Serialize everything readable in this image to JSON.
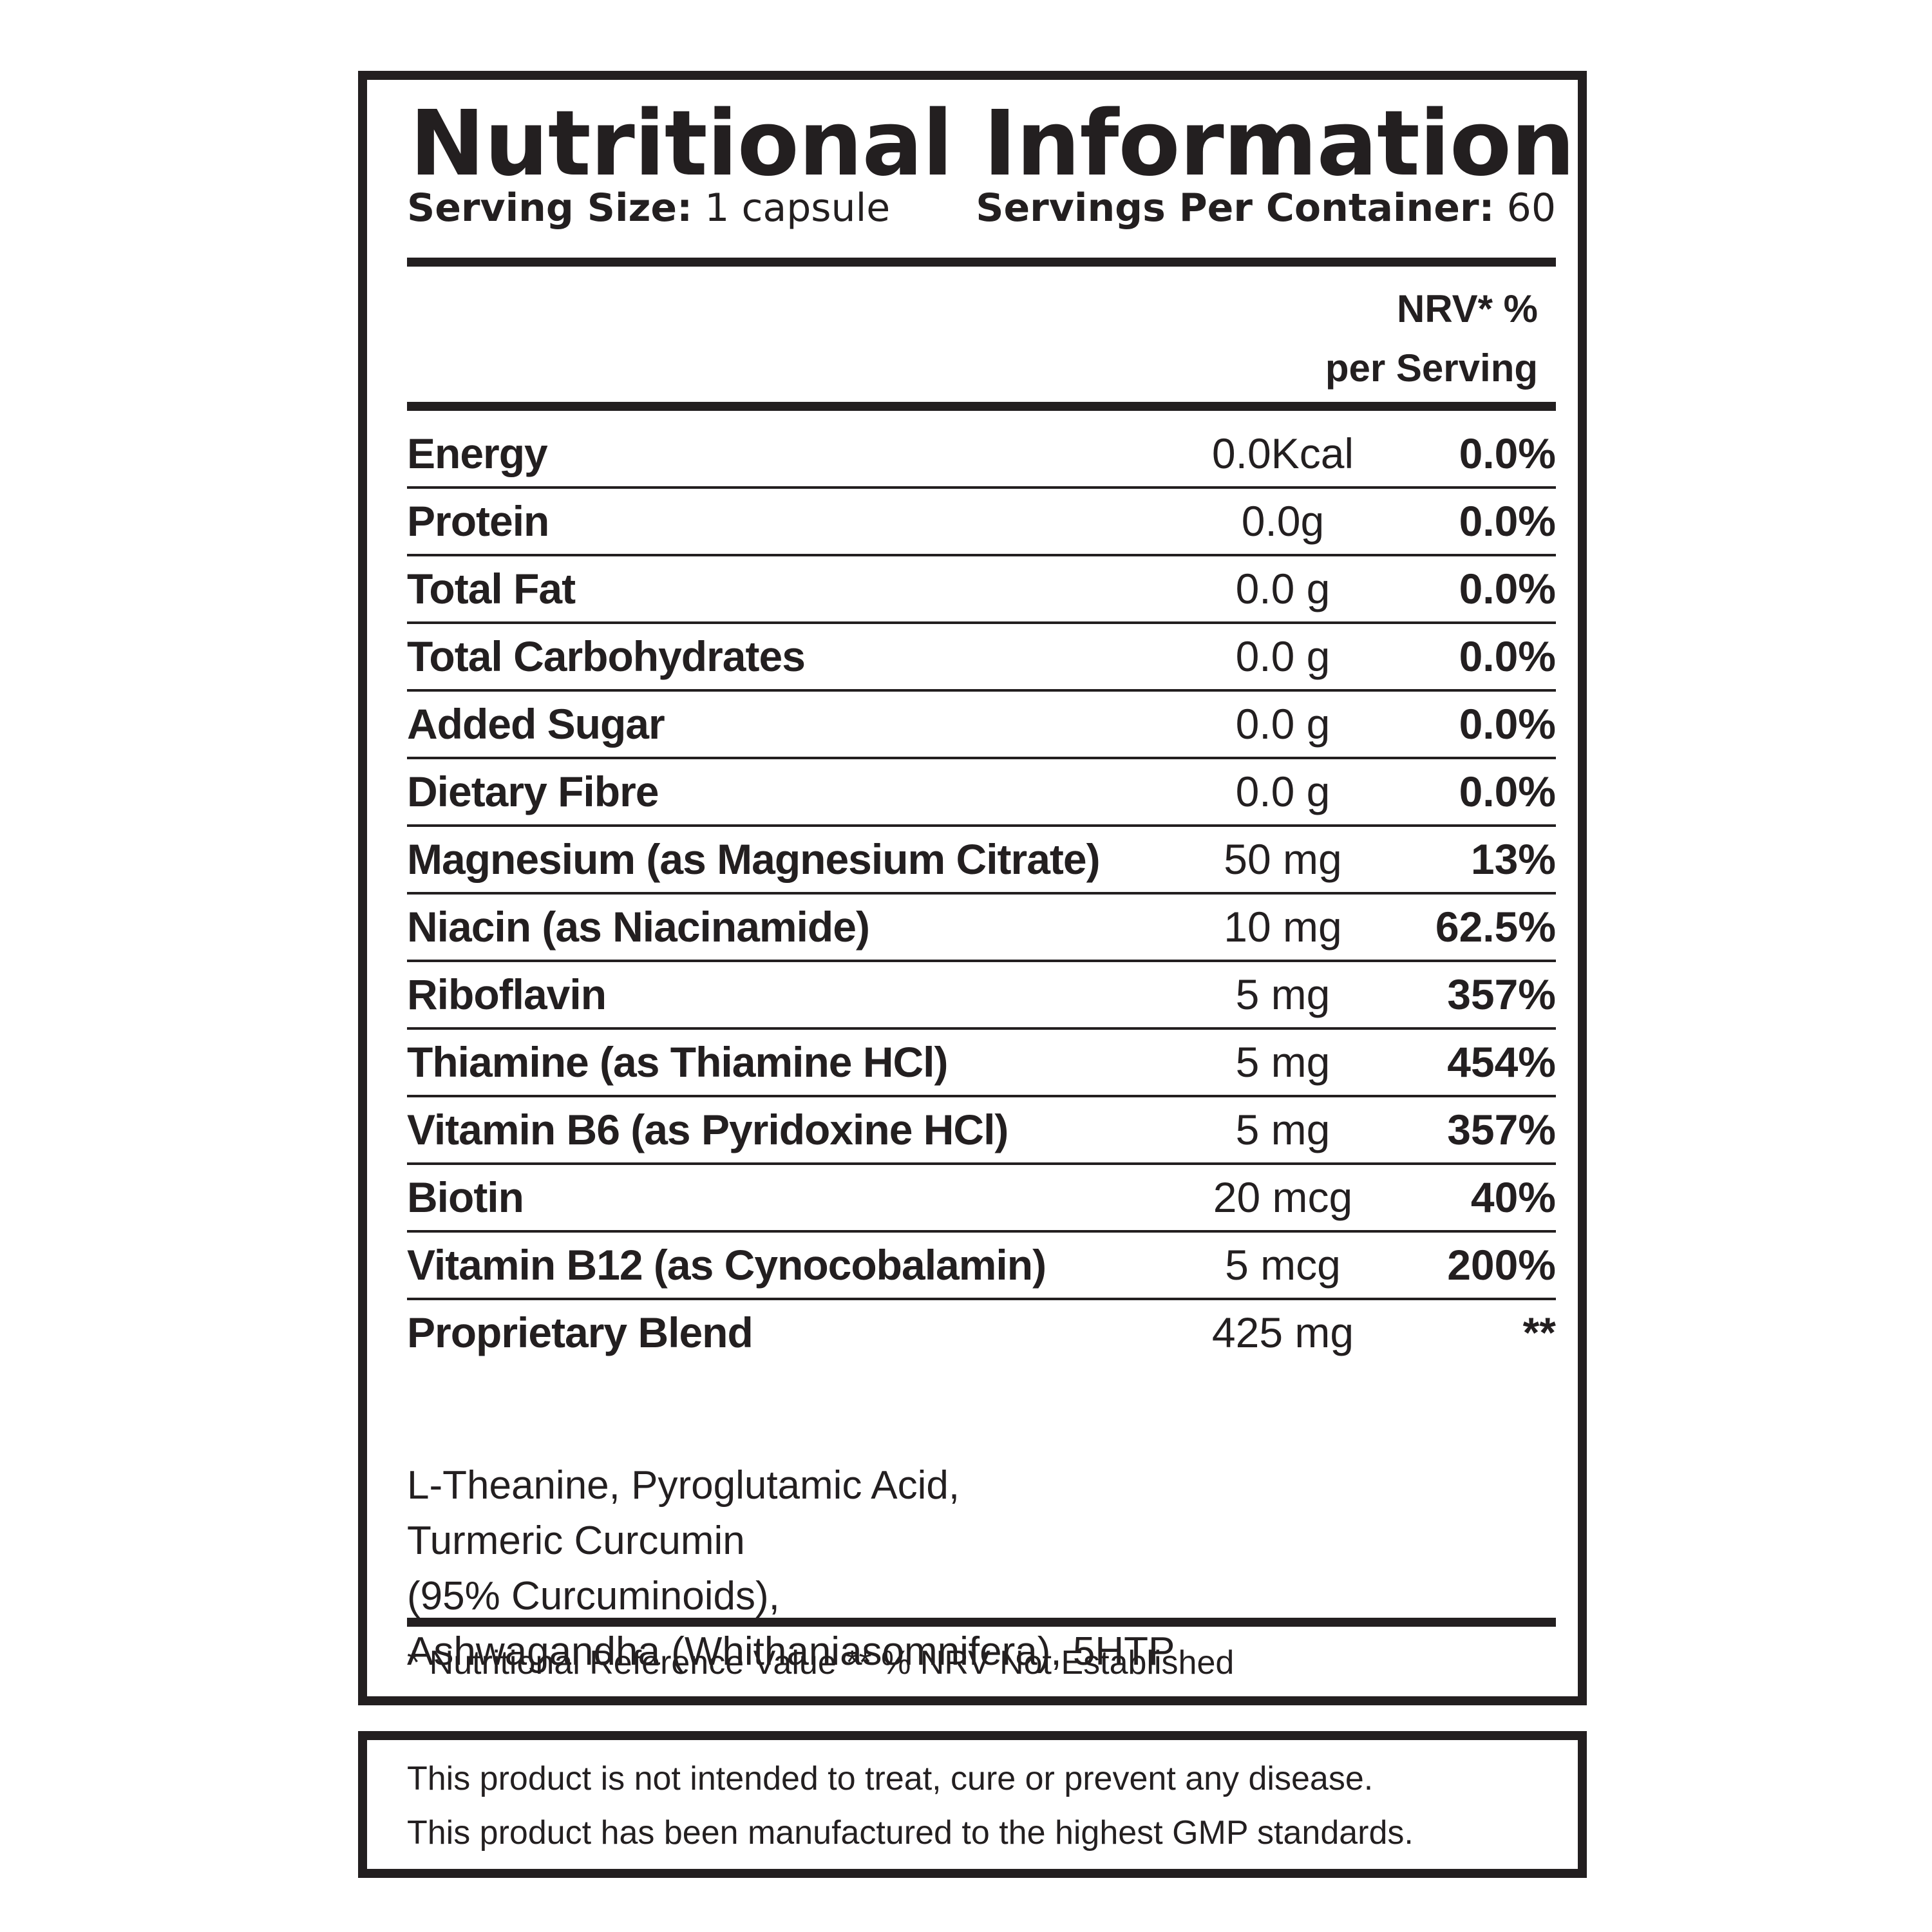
{
  "title": "Nutritional Information",
  "serving": {
    "size_label": "Serving Size:",
    "size_value": "1 capsule",
    "per_container_label": "Servings Per Container:",
    "per_container_value": "60"
  },
  "nrv_header": {
    "line1": "NRV* %",
    "line2": "per Serving"
  },
  "rows": [
    {
      "name": "Energy",
      "amount": "0.0Kcal",
      "nrv": "0.0%"
    },
    {
      "name": "Protein",
      "amount": "0.0g",
      "nrv": "0.0%"
    },
    {
      "name": "Total Fat",
      "amount": "0.0 g",
      "nrv": "0.0%"
    },
    {
      "name": "Total Carbohydrates",
      "amount": "0.0 g",
      "nrv": "0.0%"
    },
    {
      "name": "Added Sugar",
      "amount": "0.0 g",
      "nrv": "0.0%"
    },
    {
      "name": "Dietary Fibre",
      "amount": "0.0 g",
      "nrv": "0.0%"
    },
    {
      "name": "Magnesium (as Magnesium Citrate)",
      "amount": "50 mg",
      "nrv": "13%"
    },
    {
      "name": "Niacin (as Niacinamide)",
      "amount": "10 mg",
      "nrv": "62.5%"
    },
    {
      "name": "Riboflavin",
      "amount": "5 mg",
      "nrv": "357%"
    },
    {
      "name": "Thiamine (as Thiamine HCl)",
      "amount": "5 mg",
      "nrv": "454%"
    },
    {
      "name": "Vitamin B6 (as Pyridoxine HCl)",
      "amount": "5 mg",
      "nrv": "357%"
    },
    {
      "name": "Biotin",
      "amount": "20 mcg",
      "nrv": "40%"
    },
    {
      "name": "Vitamin B12 (as Cynocobalamin)",
      "amount": "5 mcg",
      "nrv": "200%"
    },
    {
      "name": "Proprietary Blend",
      "amount": "425 mg",
      "nrv": "**"
    }
  ],
  "blend_lines": [
    "L-Theanine, Pyroglutamic Acid,",
    "Turmeric Curcumin",
    "(95% Curcuminoids),",
    "Ashwagandha (Whithaniasomnifera), 5HTP"
  ],
  "footnote": "* Nutritional Reference Value ** % NRV Not Established",
  "disclaimer": {
    "line1": "This product is not intended to treat, cure or prevent any disease.",
    "line2": "This product has been manufactured to the highest GMP standards."
  }
}
